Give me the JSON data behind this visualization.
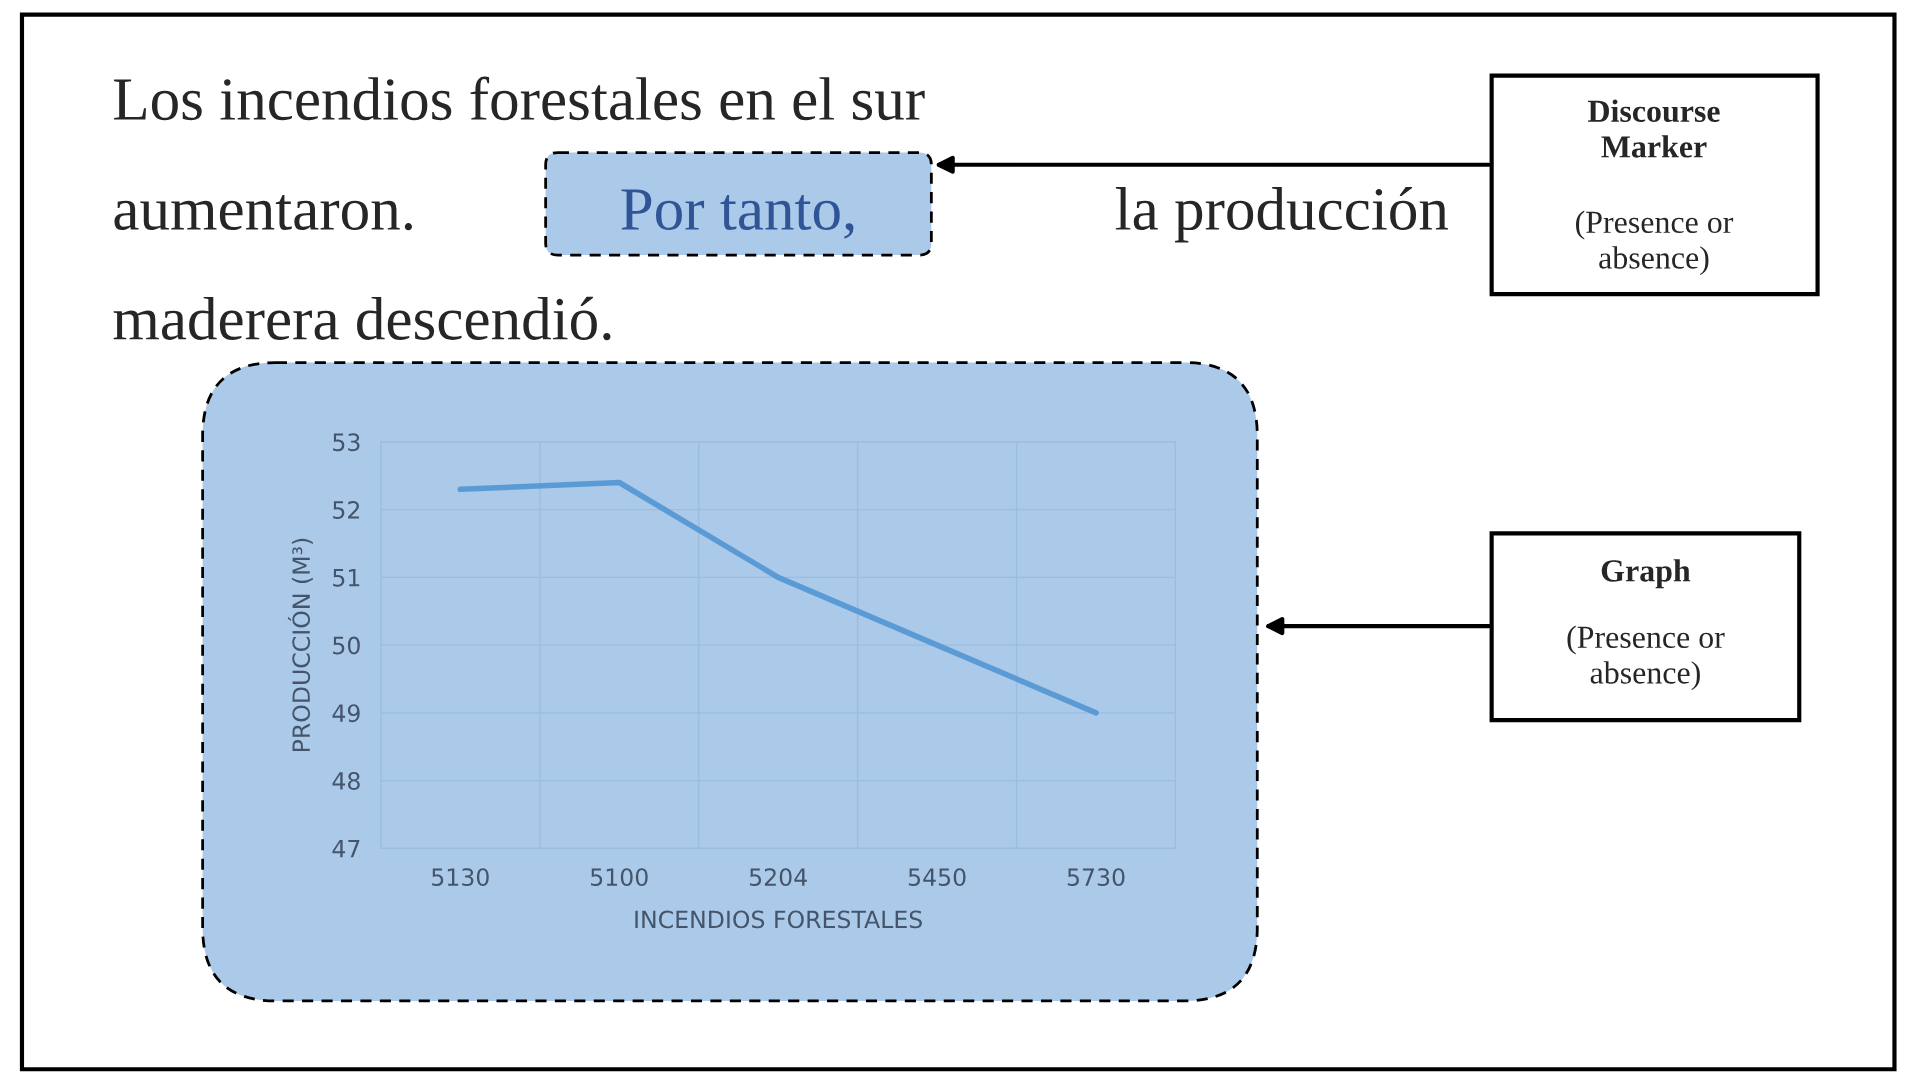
{
  "chart_data": {
    "type": "line",
    "categories": [
      "5130",
      "5100",
      "5204",
      "5450",
      "5730"
    ],
    "series": [
      {
        "color": "#5b9bd5",
        "values": [
          52.3,
          52.4,
          51.0,
          50.0,
          49.0
        ]
      }
    ],
    "ylim": [
      47,
      53
    ],
    "yticks": [
      47,
      48,
      49,
      50,
      51,
      52,
      53
    ],
    "xlabel": "INCENDIOS FORESTALES",
    "ylabel": "PRODUCCIÓN (M³)",
    "grid": true,
    "marker": "none",
    "line_style": "solid",
    "annotations": [
      "Los incendios forestales en el sur",
      "aumentaron.",
      "Por tanto,",
      "la producción",
      "maderera descendió.",
      "Discourse\nMarker",
      "(Presence or\nabsence)",
      "Graph",
      "(Presence or\nabsence)"
    ]
  }
}
